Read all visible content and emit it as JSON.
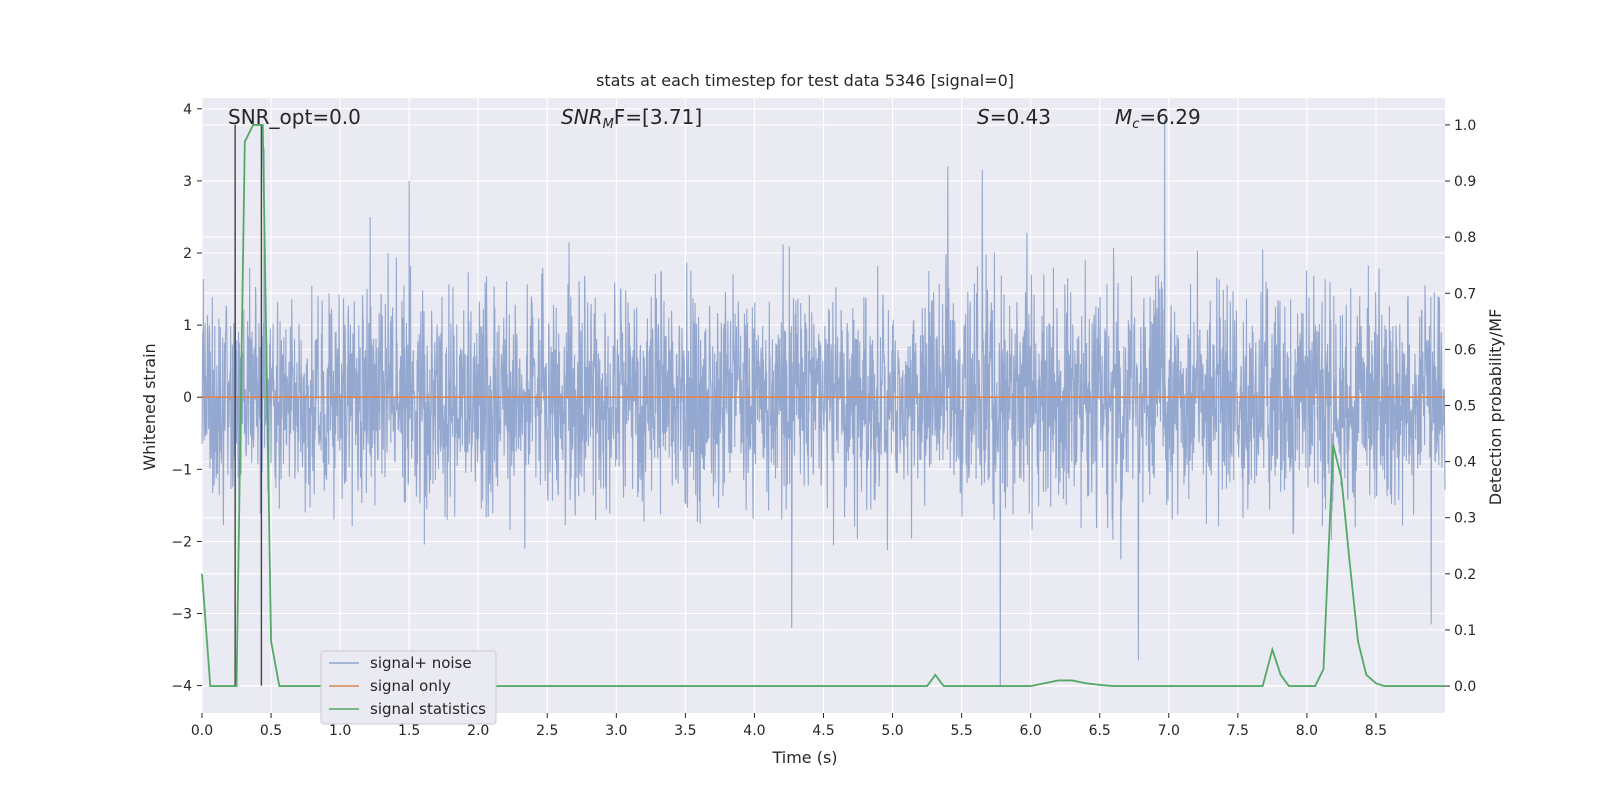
{
  "chart_data": {
    "type": "line",
    "title": "stats at each timestep for test data 5346 [signal=0]",
    "xlabel": "Time (s)",
    "ylabel_left": "Whitened strain",
    "ylabel_right": "Detection probability/MF",
    "xlim": [
      0.0,
      9.0
    ],
    "ylim_left": [
      -4.38,
      4.15
    ],
    "ylim_right": [
      -0.048,
      1.048
    ],
    "x_ticks": [
      "0.0",
      "0.5",
      "1.0",
      "1.5",
      "2.0",
      "2.5",
      "3.0",
      "3.5",
      "4.0",
      "4.5",
      "5.0",
      "5.5",
      "6.0",
      "6.5",
      "7.0",
      "7.5",
      "8.0",
      "8.5"
    ],
    "y_left_ticks": [
      "4",
      "3",
      "2",
      "1",
      "0",
      "−1",
      "−2",
      "−3",
      "−4"
    ],
    "y_right_ticks": [
      "1.0",
      "0.9",
      "0.8",
      "0.7",
      "0.6",
      "0.5",
      "0.4",
      "0.3",
      "0.2",
      "0.1",
      "0.0"
    ],
    "grid": true,
    "legend_position": "lower-left",
    "annotations": {
      "snr_opt": "SNR_opt=0.0",
      "snr_mf_main": "SNR",
      "snr_mf_sub": "M",
      "snr_mf_rest": "F=[3.71]",
      "s_main": "S",
      "s_rest": "=0.43",
      "mc_main": "M",
      "mc_sub": "c",
      "mc_rest": "=6.29"
    },
    "series": [
      {
        "name": "signal+ noise",
        "color": "#8fa3cc",
        "axis": "left",
        "description_amplitude": [
          -2.5,
          2.5
        ],
        "notable_peaks": [
          [
            0.24,
            2.85
          ],
          [
            0.45,
            3.45
          ],
          [
            1.5,
            3.0
          ],
          [
            5.4,
            3.2
          ],
          [
            5.65,
            3.15
          ],
          [
            6.97,
            3.85
          ],
          [
            4.27,
            -3.2
          ],
          [
            5.78,
            -4.0
          ],
          [
            6.78,
            -3.65
          ],
          [
            8.9,
            -3.15
          ]
        ]
      },
      {
        "name": "signal only",
        "color": "#dd8452",
        "axis": "left",
        "x": [
          0.0,
          9.0
        ],
        "y": [
          0.0,
          0.0
        ]
      },
      {
        "name": "signal statistics",
        "color": "#55a868",
        "axis": "right",
        "x": [
          0.0,
          0.06,
          0.12,
          0.19,
          0.25,
          0.31,
          0.37,
          0.44,
          0.5,
          0.56,
          0.62,
          5.18,
          5.25,
          5.31,
          5.37,
          5.43,
          6.0,
          6.1,
          6.2,
          6.3,
          6.4,
          6.5,
          6.6,
          7.62,
          7.68,
          7.75,
          7.81,
          7.87,
          8.0,
          8.06,
          8.12,
          8.19,
          8.25,
          8.31,
          8.37,
          8.43,
          8.5,
          8.56,
          9.0
        ],
        "y": [
          0.2,
          0.0,
          0.0,
          0.0,
          0.0,
          0.97,
          1.0,
          1.0,
          0.08,
          0.0,
          0.0,
          0.0,
          0.0,
          0.02,
          0.0,
          0.0,
          0.0,
          0.005,
          0.01,
          0.01,
          0.005,
          0.002,
          0.0,
          0.0,
          0.0,
          0.065,
          0.02,
          0.0,
          0.0,
          0.0,
          0.03,
          0.43,
          0.37,
          0.22,
          0.08,
          0.02,
          0.005,
          0.0,
          0.0
        ]
      }
    ],
    "event_markers": {
      "color": "#444444",
      "x": [
        0.24,
        0.43
      ]
    }
  }
}
